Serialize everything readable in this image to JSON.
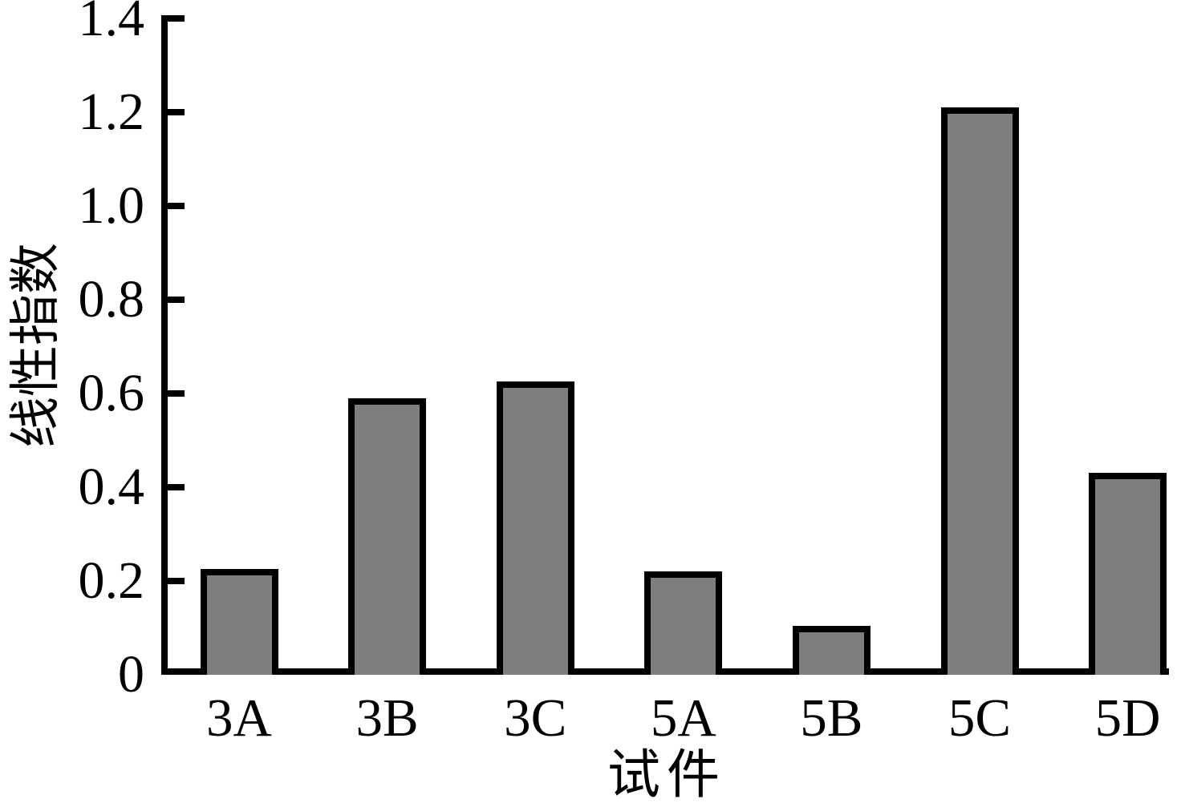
{
  "figure": {
    "background": "#ffffff",
    "axis_color": "#000000",
    "bar_fill": "#7E7E7E",
    "bar_border": "#000000",
    "text_color": "#000000"
  },
  "chart_data": {
    "type": "bar",
    "title": "",
    "categories": [
      "3A",
      "3B",
      "3C",
      "5A",
      "5B",
      "5C",
      "5D"
    ],
    "values": [
      0.225,
      0.59,
      0.625,
      0.22,
      0.105,
      1.21,
      0.43
    ],
    "xlabel": "试件",
    "ylabel": "线性指数",
    "ylim": [
      0,
      1.4
    ],
    "ytick_step": 0.2,
    "ytick_values": [
      0,
      0.2,
      0.4,
      0.6,
      0.8,
      1.0,
      1.2,
      1.4
    ],
    "ytick_labels": [
      "0",
      "0.2",
      "0.4",
      "0.6",
      "0.8",
      "1.0",
      "1.2",
      "1.4"
    ],
    "grid": "off",
    "legend": "none",
    "ticks_direction": "in"
  }
}
